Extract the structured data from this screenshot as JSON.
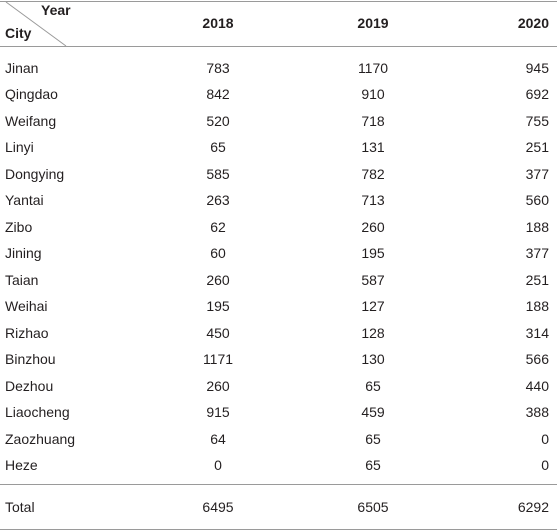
{
  "table": {
    "header": {
      "year": "Year",
      "city": "City",
      "columns": [
        "2018",
        "2019",
        "2020"
      ]
    },
    "rows": [
      [
        "Jinan",
        783,
        1170,
        945
      ],
      [
        "Qingdao",
        842,
        910,
        692
      ],
      [
        "Weifang",
        520,
        718,
        755
      ],
      [
        "Linyi",
        65,
        131,
        251
      ],
      [
        "Dongying",
        585,
        782,
        377
      ],
      [
        "Yantai",
        263,
        713,
        560
      ],
      [
        "Zibo",
        62,
        260,
        188
      ],
      [
        "Jining",
        60,
        195,
        377
      ],
      [
        "Taian",
        260,
        587,
        251
      ],
      [
        "Weihai",
        195,
        127,
        188
      ],
      [
        "Rizhao",
        450,
        128,
        314
      ],
      [
        "Binzhou",
        1171,
        130,
        566
      ],
      [
        "Dezhou",
        260,
        65,
        440
      ],
      [
        "Liaocheng",
        915,
        459,
        388
      ],
      [
        "Zaozhuang",
        64,
        65,
        0
      ],
      [
        "Heze",
        0,
        65,
        0
      ]
    ],
    "total": [
      "Total",
      6495,
      6505,
      6292
    ]
  }
}
